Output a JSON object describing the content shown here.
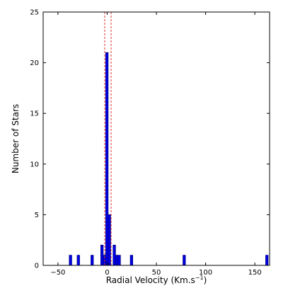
{
  "chart_data": {
    "type": "bar",
    "title": "",
    "xlabel": "Radial Velocity (Km.s",
    "xlabel_superscript": "−1",
    "xlabel_suffix": ")",
    "ylabel": "Number of Stars",
    "xlim": [
      -65,
      165
    ],
    "ylim": [
      0,
      25
    ],
    "x_ticks": [
      {
        "value": -50,
        "label": "−50"
      },
      {
        "value": 0,
        "label": "0"
      },
      {
        "value": 50,
        "label": "50"
      },
      {
        "value": 100,
        "label": "100"
      },
      {
        "value": 150,
        "label": "150"
      }
    ],
    "y_ticks": [
      {
        "value": 0,
        "label": "0"
      },
      {
        "value": 5,
        "label": "5"
      },
      {
        "value": 10,
        "label": "10"
      },
      {
        "value": 15,
        "label": "15"
      },
      {
        "value": 20,
        "label": "20"
      },
      {
        "value": 25,
        "label": "25"
      }
    ],
    "bin_width": 2.5,
    "bins": [
      {
        "x0": -38.5,
        "count": 1
      },
      {
        "x0": -30.5,
        "count": 1
      },
      {
        "x0": -16.5,
        "count": 1
      },
      {
        "x0": -6.5,
        "count": 2
      },
      {
        "x0": -4.0,
        "count": 1
      },
      {
        "x0": -1.5,
        "count": 21
      },
      {
        "x0": 1.0,
        "count": 5
      },
      {
        "x0": 6.0,
        "count": 2
      },
      {
        "x0": 8.5,
        "count": 1
      },
      {
        "x0": 11.0,
        "count": 1
      },
      {
        "x0": 23.5,
        "count": 1
      },
      {
        "x0": 77.0,
        "count": 1
      },
      {
        "x0": 161.0,
        "count": 1
      }
    ],
    "reference_lines": [
      -2.5,
      4.0
    ],
    "colors": {
      "bar_fill": "#0000ff",
      "bar_edge": "#000080",
      "hatch": "#000080",
      "reference_line": "#e03030",
      "axis": "#000000"
    }
  }
}
